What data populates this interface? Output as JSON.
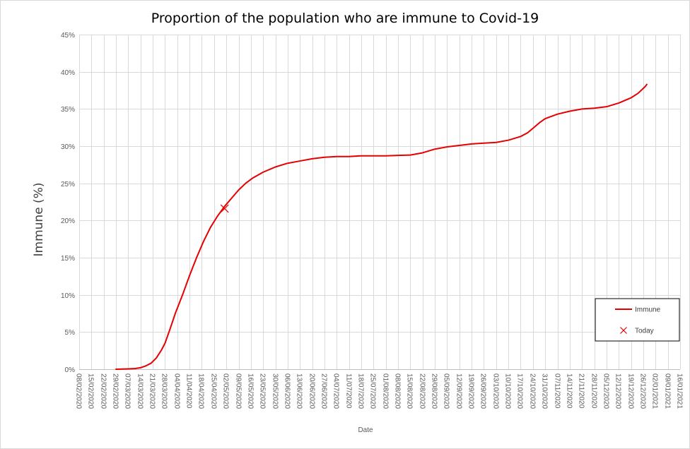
{
  "chart_data": {
    "type": "line",
    "title": "Proportion of the population who are immune to Covid-19",
    "xlabel": "Date",
    "ylabel": "Immune (%)",
    "ylim": [
      0,
      45
    ],
    "ytick_values": [
      0,
      5,
      10,
      15,
      20,
      25,
      30,
      35,
      40,
      45
    ],
    "ytick_labels": [
      "0%",
      "5%",
      "10%",
      "15%",
      "20%",
      "25%",
      "30%",
      "35%",
      "40%",
      "45%"
    ],
    "xlim": [
      "2020-02-08",
      "2021-01-16"
    ],
    "xtick_labels": [
      "08/02/2020",
      "15/02/2020",
      "22/02/2020",
      "29/02/2020",
      "07/03/2020",
      "14/03/2020",
      "21/03/2020",
      "28/03/2020",
      "04/04/2020",
      "11/04/2020",
      "18/04/2020",
      "25/04/2020",
      "02/05/2020",
      "09/05/2020",
      "16/05/2020",
      "23/05/2020",
      "30/05/2020",
      "06/06/2020",
      "13/06/2020",
      "20/06/2020",
      "27/06/2020",
      "04/07/2020",
      "11/07/2020",
      "18/07/2020",
      "25/07/2020",
      "01/08/2020",
      "08/08/2020",
      "15/08/2020",
      "22/08/2020",
      "29/08/2020",
      "05/09/2020",
      "12/09/2020",
      "19/09/2020",
      "26/09/2020",
      "03/10/2020",
      "10/10/2020",
      "17/10/2020",
      "24/10/2020",
      "31/10/2020",
      "07/11/2020",
      "14/11/2020",
      "21/11/2020",
      "28/11/2020",
      "05/12/2020",
      "12/12/2020",
      "19/12/2020",
      "26/12/2020",
      "02/01/2021",
      "09/01/2021",
      "16/01/2021"
    ],
    "grid": true,
    "legend_position": "bottom-right",
    "series": [
      {
        "name": "Immune",
        "color": "#e60000",
        "points": [
          [
            "2020-02-29",
            0.0
          ],
          [
            "2020-03-07",
            0.05
          ],
          [
            "2020-03-11",
            0.1
          ],
          [
            "2020-03-14",
            0.2
          ],
          [
            "2020-03-17",
            0.45
          ],
          [
            "2020-03-20",
            0.8
          ],
          [
            "2020-03-23",
            1.5
          ],
          [
            "2020-03-26",
            2.6
          ],
          [
            "2020-03-28",
            3.5
          ],
          [
            "2020-03-31",
            5.5
          ],
          [
            "2020-04-03",
            7.6
          ],
          [
            "2020-04-07",
            10.0
          ],
          [
            "2020-04-11",
            12.6
          ],
          [
            "2020-04-15",
            15.0
          ],
          [
            "2020-04-19",
            17.2
          ],
          [
            "2020-04-23",
            19.1
          ],
          [
            "2020-04-27",
            20.6
          ],
          [
            "2020-05-01",
            21.9
          ],
          [
            "2020-05-05",
            23.0
          ],
          [
            "2020-05-09",
            24.1
          ],
          [
            "2020-05-13",
            25.0
          ],
          [
            "2020-05-17",
            25.7
          ],
          [
            "2020-05-23",
            26.5
          ],
          [
            "2020-05-30",
            27.2
          ],
          [
            "2020-06-06",
            27.7
          ],
          [
            "2020-06-13",
            28.0
          ],
          [
            "2020-06-20",
            28.3
          ],
          [
            "2020-06-27",
            28.5
          ],
          [
            "2020-07-04",
            28.6
          ],
          [
            "2020-07-11",
            28.6
          ],
          [
            "2020-07-18",
            28.7
          ],
          [
            "2020-07-25",
            28.7
          ],
          [
            "2020-08-01",
            28.7
          ],
          [
            "2020-08-08",
            28.75
          ],
          [
            "2020-08-15",
            28.8
          ],
          [
            "2020-08-22",
            29.1
          ],
          [
            "2020-08-29",
            29.6
          ],
          [
            "2020-09-05",
            29.9
          ],
          [
            "2020-09-12",
            30.1
          ],
          [
            "2020-09-19",
            30.3
          ],
          [
            "2020-09-26",
            30.4
          ],
          [
            "2020-10-03",
            30.5
          ],
          [
            "2020-10-10",
            30.8
          ],
          [
            "2020-10-17",
            31.3
          ],
          [
            "2020-10-21",
            31.8
          ],
          [
            "2020-10-25",
            32.6
          ],
          [
            "2020-10-28",
            33.2
          ],
          [
            "2020-10-31",
            33.7
          ],
          [
            "2020-11-07",
            34.3
          ],
          [
            "2020-11-14",
            34.7
          ],
          [
            "2020-11-21",
            35.0
          ],
          [
            "2020-11-28",
            35.1
          ],
          [
            "2020-12-05",
            35.3
          ],
          [
            "2020-12-12",
            35.8
          ],
          [
            "2020-12-19",
            36.5
          ],
          [
            "2020-12-23",
            37.1
          ],
          [
            "2020-12-27",
            38.0
          ],
          [
            "2020-12-28",
            38.3
          ]
        ]
      }
    ],
    "markers": [
      {
        "name": "Today",
        "color": "#e60000",
        "symbol": "x",
        "x": "2020-05-01",
        "y": 21.6
      }
    ]
  }
}
